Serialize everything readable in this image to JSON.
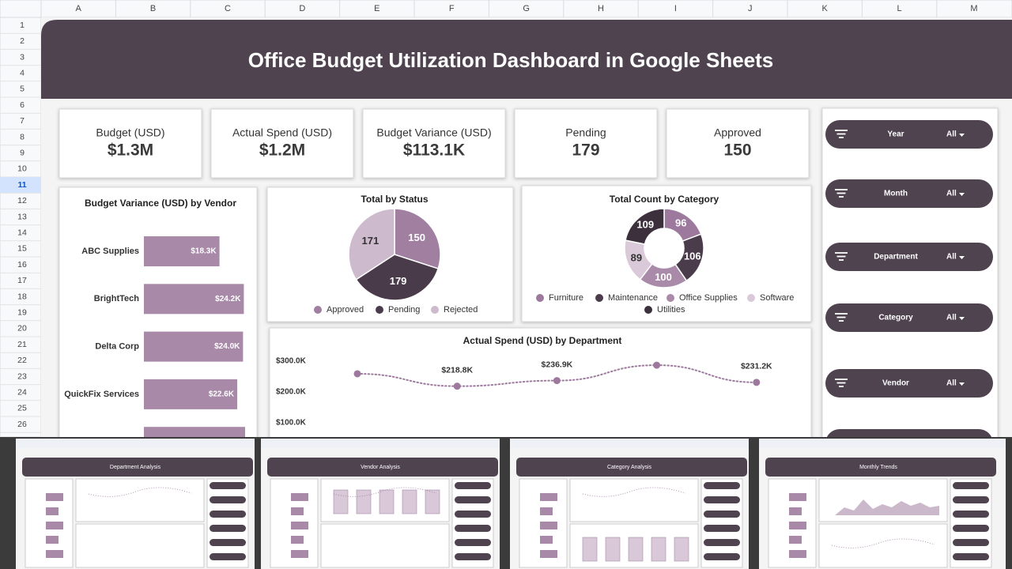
{
  "sheet": {
    "columns": [
      "A",
      "B",
      "C",
      "D",
      "E",
      "F",
      "G",
      "H",
      "I",
      "J",
      "K",
      "L",
      "M"
    ],
    "rows": [
      1,
      2,
      3,
      4,
      5,
      6,
      7,
      8,
      9,
      10,
      11,
      12,
      13,
      14,
      15,
      16,
      17,
      18,
      19,
      20,
      21,
      22,
      23,
      24,
      25,
      26
    ]
  },
  "title": "Office Budget Utilization Dashboard in Google Sheets",
  "kpis": [
    {
      "label": "Budget (USD)",
      "value": "$1.3M"
    },
    {
      "label": "Actual Spend (USD)",
      "value": "$1.2M"
    },
    {
      "label": "Budget Variance (USD)",
      "value": "$113.1K"
    },
    {
      "label": "Pending",
      "value": "179"
    },
    {
      "label": "Approved",
      "value": "150"
    }
  ],
  "chart_data": [
    {
      "type": "hbar",
      "title": "Budget Variance (USD) by Vendor",
      "categories": [
        "ABC Supplies",
        "BrightTech",
        "Delta Corp",
        "QuickFix Services",
        null
      ],
      "values": [
        18300,
        24200,
        24000,
        22600,
        24500
      ],
      "value_labels": [
        "$18.3K",
        "$24.2K",
        "$24.0K",
        "$22.6K",
        null
      ],
      "color": "#a88aa8"
    },
    {
      "type": "pie",
      "title": "Total by Status",
      "categories": [
        "Approved",
        "Pending",
        "Rejected"
      ],
      "values": [
        150,
        179,
        171
      ],
      "colors": [
        "#a07fa0",
        "#4a3b4a",
        "#cdbacd"
      ]
    },
    {
      "type": "donut",
      "title": "Total Count by Category",
      "categories": [
        "Furniture",
        "Maintenance",
        "Office Supplies",
        "Software",
        "Utilities"
      ],
      "values": [
        96,
        106,
        100,
        89,
        109
      ],
      "colors": [
        "#9d7a9d",
        "#4b3c4b",
        "#a98aa9",
        "#d9c9d9",
        "#3c303c"
      ]
    },
    {
      "type": "line",
      "title": "Actual Spend (USD) by Department",
      "categories": [
        null,
        null,
        null,
        null,
        null
      ],
      "values": [
        259000,
        218800,
        236900,
        287000,
        231200
      ],
      "value_labels": [
        null,
        "$218.8K",
        "$236.9K",
        null,
        "$231.2K"
      ],
      "color": "#9d7a9d",
      "ylim": [
        0,
        300000
      ],
      "yticks": [
        {
          "value": 300000,
          "label": "$300.0K"
        },
        {
          "value": 200000,
          "label": "$200.0K"
        },
        {
          "value": 100000,
          "label": "$100.0K"
        }
      ]
    }
  ],
  "slicers": [
    {
      "label": "Year",
      "value": "All"
    },
    {
      "label": "Month",
      "value": "All"
    },
    {
      "label": "Department",
      "value": "All"
    },
    {
      "label": "Category",
      "value": "All"
    },
    {
      "label": "Vendor",
      "value": "All"
    }
  ],
  "tabs": [
    "Department Analysis",
    "Vendor Analysis",
    "Category Analysis",
    "Monthly Trends"
  ]
}
